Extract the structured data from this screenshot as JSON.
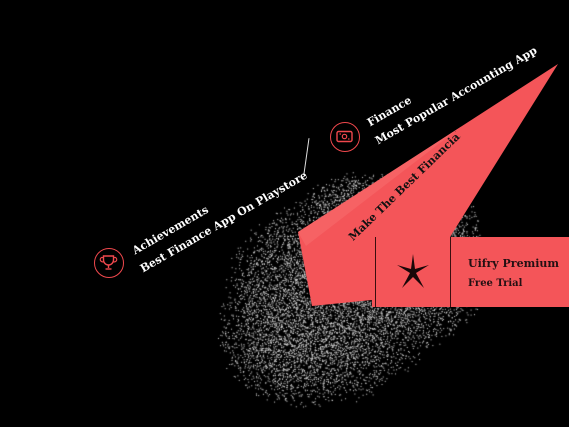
{
  "colors": {
    "background": "#000000",
    "accent": "#f45559",
    "text": "#ffffff"
  },
  "items": [
    {
      "title": "Achievements",
      "subtitle": "Best Finance App On Playstore",
      "icon": "trophy-icon"
    },
    {
      "title": "Finance",
      "subtitle": "Most Popular Accounting App",
      "icon": "money-icon"
    }
  ],
  "ribbon": {
    "text": "Make The Best Financial Decisions"
  },
  "premium_card": {
    "title": "Uifry Premium",
    "subtitle": "Free Trial",
    "icon": "star-burst-icon"
  }
}
